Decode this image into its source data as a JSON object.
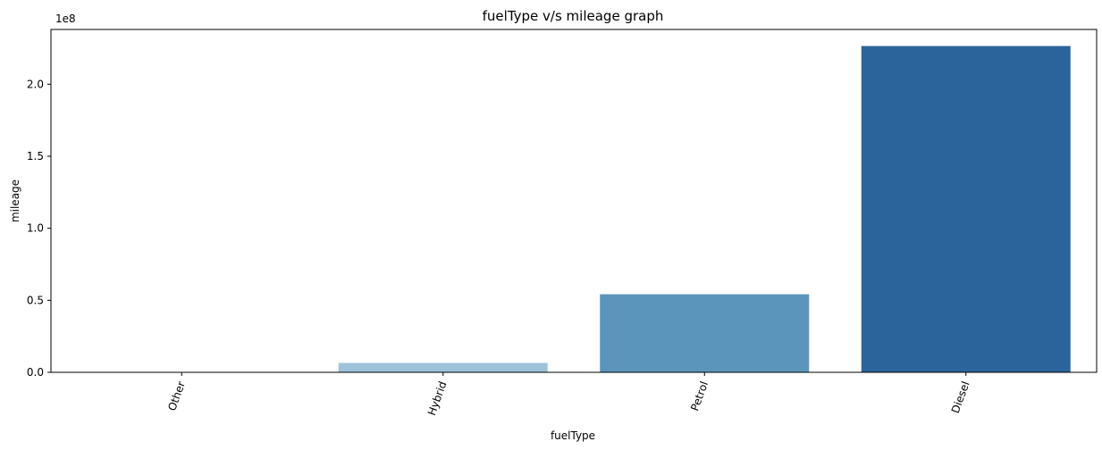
{
  "chart_data": {
    "type": "bar",
    "title": "fuelType v/s mileage graph",
    "xlabel": "fuelType",
    "ylabel": "mileage",
    "offset_label": "1e8",
    "categories": [
      "Other",
      "Hybrid",
      "Petrol",
      "Diesel"
    ],
    "values": [
      0.003,
      0.065,
      0.542,
      2.265
    ],
    "value_multiplier": 100000000,
    "ylim": [
      0,
      2.38
    ],
    "yticks": [
      "0.0",
      "0.5",
      "1.0",
      "1.5",
      "2.0"
    ],
    "ytick_values": [
      0,
      0.5,
      1.0,
      1.5,
      2.0
    ],
    "colors": [
      "#dce9f5",
      "#9dc3db",
      "#5b95bb",
      "#2b649a"
    ],
    "grid": false,
    "legend": "none"
  }
}
